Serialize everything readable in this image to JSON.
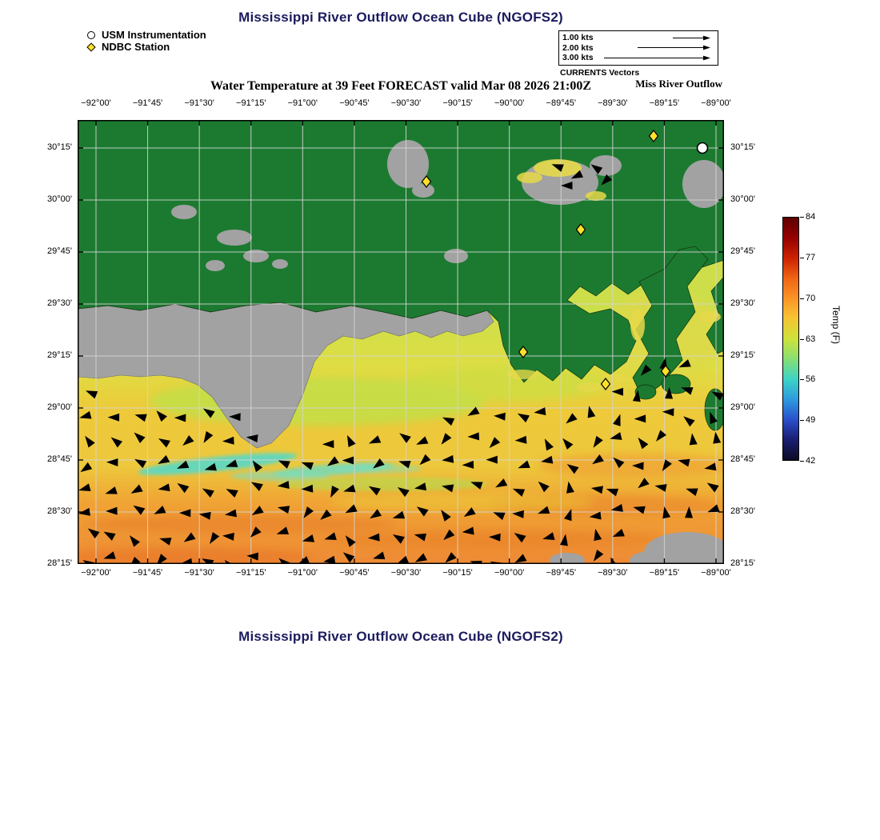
{
  "colors": {
    "title": "#1b1b5e",
    "land_green": "#1c7a30",
    "mask_gray": "#a2a2a2",
    "station_yellow": "#ffe228",
    "vector_black": "#000000",
    "water_warm_orange": "#ee8f3c",
    "water_mid_yellow": "#e8d23c",
    "water_cool_cyan": "#58d8c6",
    "colorbar_top": "#5e0000",
    "colorbar_bottom": "#0c0c24"
  },
  "header": {
    "title": "Mississippi River Outflow Ocean Cube (NGOFS2)"
  },
  "footer": {
    "title": "Mississippi River Outflow Ocean Cube (NGOFS2)"
  },
  "marker_legend": {
    "usm_label": "USM Instrumentation",
    "ndbc_label": "NDBC Station"
  },
  "vector_legend": {
    "caption": "CURRENTS Vectors",
    "entries": [
      {
        "label": "1.00 kts",
        "length": 46
      },
      {
        "label": "2.00 kts",
        "length": 90
      },
      {
        "label": "3.00 kts",
        "length": 132
      }
    ]
  },
  "map": {
    "subtitle": "Water Temperature at 39 Feet FORECAST valid Mar 08 2026 21:00Z",
    "corner_label": "Miss River Outflow",
    "lon_ticks": [
      "−92°00'",
      "−91°45'",
      "−91°30'",
      "−91°15'",
      "−91°00'",
      "−90°45'",
      "−90°30'",
      "−90°15'",
      "−90°00'",
      "−89°45'",
      "−89°30'",
      "−89°15'",
      "−89°00'"
    ],
    "lat_ticks": [
      "30°15'",
      "30°00'",
      "29°45'",
      "29°30'",
      "29°15'",
      "29°00'",
      "28°45'",
      "28°30'",
      "28°15'"
    ]
  },
  "colorbar": {
    "label": "Temp (F)",
    "tick_labels": [
      "84",
      "77",
      "70",
      "63",
      "56",
      "49",
      "42"
    ]
  },
  "stations": {
    "ndbc": [
      [
        436,
        77
      ],
      [
        720,
        20
      ],
      [
        629,
        137
      ],
      [
        557,
        290
      ],
      [
        660,
        330
      ],
      [
        735,
        314
      ]
    ],
    "usm": [
      [
        781,
        35
      ]
    ]
  },
  "chart_data": {
    "type": "heatmap",
    "title": "Mississippi River Outflow Ocean Cube (NGOFS2)",
    "subtitle": "Water Temperature at 39 Feet FORECAST valid Mar 08 2026 21:00Z",
    "model": "NGOFS2",
    "variable": "Water Temperature",
    "depth": "39 Feet",
    "valid_time": "Mar 08 2026 21:00Z",
    "region_label": "Miss River Outflow",
    "x_ticks": [
      "−92°00'",
      "−91°45'",
      "−91°30'",
      "−91°15'",
      "−91°00'",
      "−90°45'",
      "−90°30'",
      "−90°15'",
      "−90°00'",
      "−89°45'",
      "−89°30'",
      "−89°15'",
      "−89°00'"
    ],
    "y_ticks": [
      "30°15'",
      "30°00'",
      "29°45'",
      "29°30'",
      "29°15'",
      "29°00'",
      "28°45'",
      "28°30'",
      "28°15'"
    ],
    "colorbar": {
      "label": "Temp (F)",
      "units": "F",
      "min": 42,
      "max": 84,
      "ticks": [
        84,
        77,
        70,
        63,
        56,
        49,
        42
      ]
    },
    "overlays": {
      "currents_vectors_scale_kts": [
        1.0,
        2.0,
        3.0
      ],
      "currents_caption": "CURRENTS Vectors",
      "ndbc_station_count": 6,
      "usm_instrumentation_count": 1
    },
    "field_estimate": {
      "offshore_F": [
        70,
        75
      ],
      "nearshore_band_F": [
        62,
        67
      ],
      "cool_filaments_F": [
        56,
        60
      ]
    },
    "legend_note": "dark green = land, gray = land/no-data mask, black triangles = current vectors, yellow diamonds = NDBC stations, white circle = USM instrumentation"
  }
}
